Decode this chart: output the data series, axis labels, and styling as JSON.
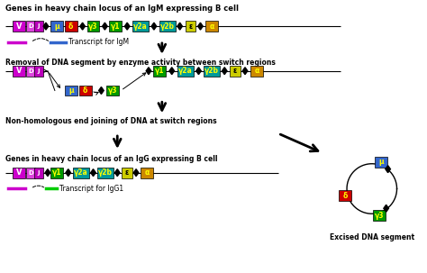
{
  "bg_color": "#ffffff",
  "row1_label": "Genes in heavy chain locus of an IgM expressing B cell",
  "row2_label": "Removal of DNA segment by enzyme activity between switch regions",
  "row3_label": "Non-homologous end joining of DNA at switch regions",
  "row4_label": "Genes in heavy chain locus of an IgG expressing B cell",
  "transcript_igm": "Transcript for IgM",
  "transcript_igg": "Transcript for IgG1",
  "excised_label": "Excised DNA segment",
  "colors": {
    "V": "#cc00cc",
    "D": "#dd44dd",
    "J": "#bb00bb",
    "mu": "#3366cc",
    "delta": "#cc0000",
    "gamma3": "#009900",
    "gamma1": "#009900",
    "gamma2a": "#009999",
    "gamma2b": "#009999",
    "epsilon": "#cccc00",
    "alpha": "#cc8800"
  }
}
